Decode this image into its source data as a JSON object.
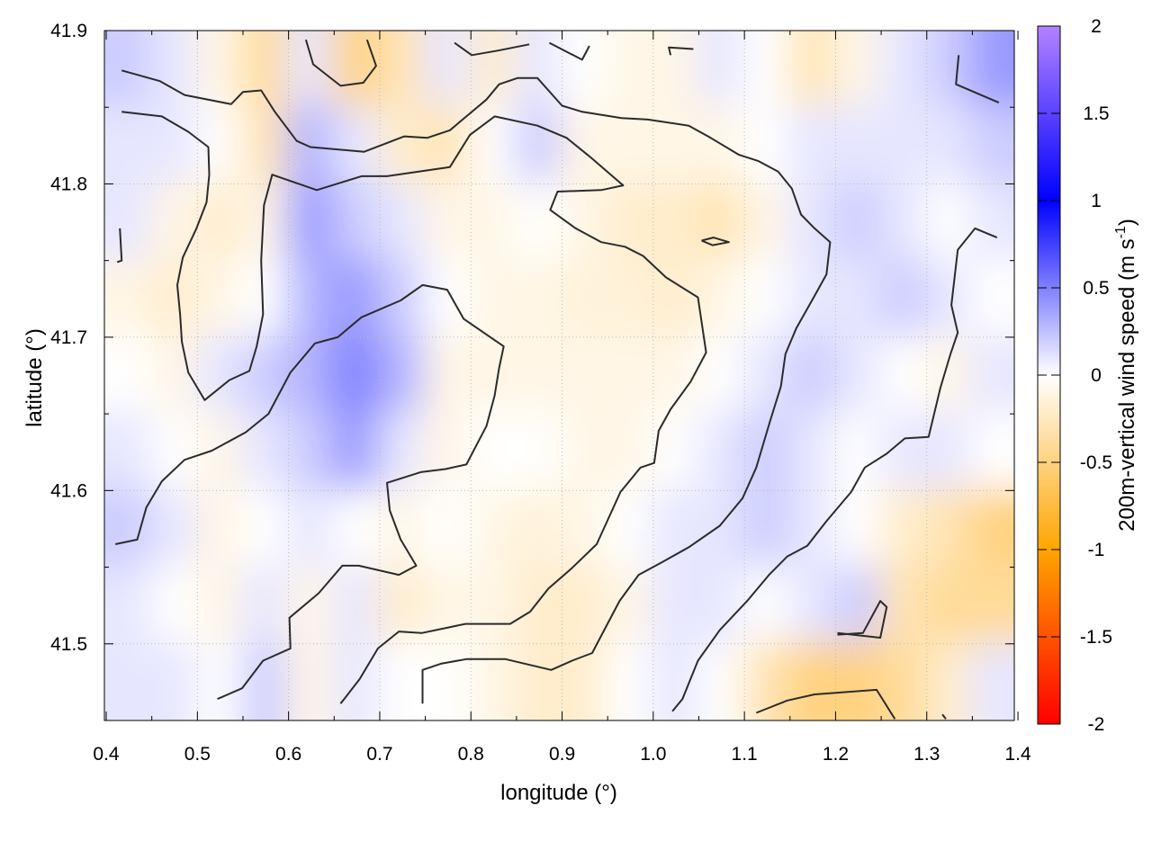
{
  "chart_data": {
    "type": "heatmap",
    "title": "",
    "xlabel": "longitude (°)",
    "ylabel": "latitude (°)",
    "xlim": [
      0.398,
      1.396
    ],
    "ylim": [
      41.45,
      41.9
    ],
    "xticks": [
      "0.4",
      "0.5",
      "0.6",
      "0.7",
      "0.8",
      "0.9",
      "1.0",
      "1.1",
      "1.2",
      "1.3",
      "1.4"
    ],
    "yticks": [
      "41.5",
      "41.6",
      "41.7",
      "41.8",
      "41.9"
    ],
    "grid": true,
    "colorbar": {
      "label": "200m-vertical wind speed (m s",
      "label_sup": "-1",
      "label_end": ")",
      "range": [
        -2,
        2
      ],
      "ticks": [
        "2",
        "1.5",
        "1",
        "0.5",
        "0",
        "-0.5",
        "-1",
        "-1.5",
        "-2"
      ],
      "stops": [
        [
          -2,
          "#ff0000"
        ],
        [
          -1,
          "#ffa500"
        ],
        [
          0,
          "#ffffff"
        ],
        [
          1,
          "#0000ff"
        ],
        [
          2,
          "#b383ff"
        ]
      ]
    },
    "field": {
      "lon_start": 0.4,
      "lon_step": 0.05,
      "lat_rows": [
        41.875,
        41.825,
        41.775,
        41.725,
        41.675,
        41.625,
        41.575,
        41.525,
        41.475
      ],
      "values": [
        [
          0.2,
          0.1,
          -0.1,
          -0.4,
          0.1,
          -0.5,
          -0.3,
          0.1,
          -0.2,
          0.1,
          0.0,
          -0.1,
          -0.1,
          0.1,
          0.0,
          -0.3,
          -0.1,
          0.1,
          0.2,
          0.4
        ],
        [
          0.1,
          0.1,
          0.0,
          -0.3,
          0.3,
          0.1,
          -0.2,
          -0.3,
          0.0,
          0.2,
          -0.1,
          -0.1,
          -0.1,
          -0.1,
          0.0,
          0.1,
          0.1,
          0.1,
          0.1,
          0.2
        ],
        [
          0.1,
          -0.1,
          -0.2,
          -0.1,
          0.4,
          0.2,
          0.1,
          -0.1,
          -0.1,
          0.0,
          -0.1,
          -0.2,
          -0.2,
          -0.3,
          -0.1,
          0.1,
          0.2,
          0.1,
          0.0,
          0.1
        ],
        [
          -0.1,
          -0.2,
          -0.1,
          0.0,
          0.3,
          0.4,
          0.2,
          0.0,
          -0.1,
          -0.1,
          -0.15,
          -0.15,
          -0.2,
          -0.1,
          0.0,
          0.1,
          0.1,
          0.2,
          0.1,
          0.0
        ],
        [
          0.0,
          -0.1,
          0.1,
          0.2,
          0.3,
          0.5,
          0.3,
          -0.1,
          -0.1,
          -0.1,
          -0.1,
          -0.1,
          -0.1,
          0.0,
          0.1,
          0.2,
          0.1,
          0.0,
          -0.1,
          0.1
        ],
        [
          0.1,
          0.0,
          -0.1,
          0.1,
          0.2,
          0.4,
          0.1,
          -0.1,
          0.0,
          0.0,
          -0.1,
          -0.1,
          0.0,
          0.1,
          0.2,
          0.1,
          0.0,
          0.1,
          0.1,
          0.0
        ],
        [
          0.2,
          0.1,
          -0.1,
          0.0,
          0.1,
          0.0,
          -0.1,
          0.0,
          -0.1,
          -0.15,
          -0.1,
          0.0,
          0.1,
          0.1,
          0.2,
          0.1,
          0.0,
          -0.2,
          -0.3,
          -0.5
        ],
        [
          0.1,
          0.0,
          -0.1,
          0.1,
          -0.1,
          0.1,
          -0.2,
          -0.1,
          -0.1,
          -0.2,
          -0.2,
          -0.1,
          0.1,
          0.1,
          0.0,
          0.1,
          0.2,
          -0.3,
          -0.4,
          -0.4
        ],
        [
          0.1,
          0.1,
          0.0,
          0.2,
          -0.1,
          0.1,
          0.0,
          0.0,
          -0.1,
          -0.2,
          -0.2,
          0.0,
          0.1,
          0.0,
          -0.3,
          -0.5,
          -0.5,
          -0.4,
          -0.2,
          0.1
        ]
      ]
    },
    "contours": [
      [
        [
          1.021,
          41.456
        ],
        [
          1.032,
          41.464
        ],
        [
          1.049,
          41.489
        ],
        [
          1.073,
          41.509
        ],
        [
          1.103,
          41.528
        ],
        [
          1.127,
          41.545
        ],
        [
          1.147,
          41.557
        ],
        [
          1.169,
          41.564
        ],
        [
          1.19,
          41.58
        ],
        [
          1.217,
          41.599
        ],
        [
          1.232,
          41.615
        ],
        [
          1.256,
          41.624
        ],
        [
          1.276,
          41.634
        ],
        [
          1.302,
          41.635
        ],
        [
          1.315,
          41.667
        ],
        [
          1.326,
          41.689
        ],
        [
          1.334,
          41.703
        ],
        [
          1.327,
          41.721
        ],
        [
          1.334,
          41.757
        ],
        [
          1.353,
          41.771
        ],
        [
          1.377,
          41.765
        ]
      ],
      [
        [
          0.747,
          41.461
        ],
        [
          0.747,
          41.483
        ],
        [
          0.767,
          41.487
        ],
        [
          0.795,
          41.49
        ],
        [
          0.838,
          41.49
        ],
        [
          0.888,
          41.483
        ],
        [
          0.911,
          41.489
        ],
        [
          0.933,
          41.494
        ],
        [
          0.94,
          41.502
        ],
        [
          0.963,
          41.528
        ],
        [
          0.984,
          41.545
        ],
        [
          1.009,
          41.553
        ],
        [
          1.039,
          41.563
        ],
        [
          1.073,
          41.577
        ],
        [
          1.098,
          41.595
        ],
        [
          1.113,
          41.615
        ],
        [
          1.128,
          41.645
        ],
        [
          1.14,
          41.668
        ],
        [
          1.145,
          41.689
        ],
        [
          1.157,
          41.706
        ],
        [
          1.177,
          41.727
        ],
        [
          1.19,
          41.741
        ],
        [
          1.194,
          41.762
        ],
        [
          1.177,
          41.771
        ],
        [
          1.162,
          41.78
        ],
        [
          1.152,
          41.797
        ],
        [
          1.137,
          41.808
        ],
        [
          1.115,
          41.815
        ],
        [
          1.094,
          41.819
        ],
        [
          1.063,
          41.83
        ],
        [
          1.039,
          41.838
        ],
        [
          0.994,
          41.842
        ],
        [
          0.965,
          41.843
        ],
        [
          0.922,
          41.847
        ],
        [
          0.9,
          41.851
        ],
        [
          0.873,
          41.869
        ],
        [
          0.851,
          41.869
        ],
        [
          0.831,
          41.865
        ],
        [
          0.817,
          41.855
        ],
        [
          0.795,
          41.844
        ],
        [
          0.777,
          41.835
        ],
        [
          0.752,
          41.83
        ],
        [
          0.727,
          41.831
        ],
        [
          0.683,
          41.821
        ],
        [
          0.624,
          41.824
        ],
        [
          0.609,
          41.828
        ],
        [
          0.585,
          41.847
        ],
        [
          0.57,
          41.861
        ],
        [
          0.55,
          41.86
        ],
        [
          0.537,
          41.852
        ],
        [
          0.486,
          41.858
        ],
        [
          0.459,
          41.867
        ],
        [
          0.417,
          41.874
        ]
      ],
      [
        [
          0.522,
          41.464
        ],
        [
          0.549,
          41.471
        ],
        [
          0.572,
          41.489
        ],
        [
          0.602,
          41.497
        ],
        [
          0.601,
          41.517
        ],
        [
          0.633,
          41.533
        ],
        [
          0.659,
          41.551
        ],
        [
          0.677,
          41.551
        ],
        [
          0.721,
          41.545
        ],
        [
          0.74,
          41.551
        ],
        [
          0.723,
          41.568
        ],
        [
          0.711,
          41.587
        ],
        [
          0.708,
          41.605
        ],
        [
          0.745,
          41.612
        ],
        [
          0.772,
          41.614
        ],
        [
          0.795,
          41.617
        ],
        [
          0.817,
          41.642
        ],
        [
          0.826,
          41.662
        ],
        [
          0.831,
          41.68
        ],
        [
          0.836,
          41.694
        ],
        [
          0.792,
          41.712
        ],
        [
          0.774,
          41.731
        ],
        [
          0.747,
          41.734
        ],
        [
          0.723,
          41.724
        ],
        [
          0.68,
          41.713
        ],
        [
          0.654,
          41.7
        ],
        [
          0.629,
          41.696
        ],
        [
          0.602,
          41.677
        ],
        [
          0.578,
          41.65
        ],
        [
          0.553,
          41.638
        ],
        [
          0.516,
          41.626
        ],
        [
          0.486,
          41.62
        ],
        [
          0.461,
          41.606
        ],
        [
          0.444,
          41.589
        ],
        [
          0.434,
          41.568
        ],
        [
          0.41,
          41.565
        ]
      ],
      [
        [
          0.657,
          41.461
        ],
        [
          0.678,
          41.477
        ],
        [
          0.698,
          41.497
        ],
        [
          0.721,
          41.508
        ],
        [
          0.746,
          41.507
        ],
        [
          0.794,
          41.513
        ],
        [
          0.843,
          41.513
        ],
        [
          0.865,
          41.521
        ],
        [
          0.885,
          41.536
        ],
        [
          0.91,
          41.549
        ],
        [
          0.938,
          41.565
        ],
        [
          0.964,
          41.599
        ],
        [
          0.986,
          41.615
        ],
        [
          1.001,
          41.618
        ],
        [
          1.006,
          41.639
        ],
        [
          1.019,
          41.653
        ],
        [
          1.041,
          41.671
        ],
        [
          1.058,
          41.69
        ],
        [
          1.049,
          41.726
        ],
        [
          1.014,
          41.739
        ],
        [
          0.989,
          41.753
        ],
        [
          0.969,
          41.759
        ],
        [
          0.943,
          41.762
        ],
        [
          0.915,
          41.771
        ],
        [
          0.887,
          41.783
        ],
        [
          0.895,
          41.795
        ],
        [
          0.943,
          41.796
        ],
        [
          0.967,
          41.799
        ],
        [
          0.93,
          41.818
        ],
        [
          0.905,
          41.83
        ],
        [
          0.873,
          41.838
        ],
        [
          0.826,
          41.844
        ],
        [
          0.799,
          41.832
        ],
        [
          0.777,
          41.811
        ],
        [
          0.708,
          41.805
        ],
        [
          0.68,
          41.805
        ],
        [
          0.631,
          41.796
        ],
        [
          0.582,
          41.806
        ],
        [
          0.573,
          41.786
        ],
        [
          0.57,
          41.75
        ],
        [
          0.572,
          41.715
        ],
        [
          0.565,
          41.694
        ],
        [
          0.557,
          41.678
        ],
        [
          0.535,
          41.672
        ],
        [
          0.508,
          41.659
        ],
        [
          0.49,
          41.677
        ],
        [
          0.483,
          41.697
        ],
        [
          0.481,
          41.715
        ],
        [
          0.478,
          41.734
        ],
        [
          0.484,
          41.752
        ],
        [
          0.499,
          41.771
        ],
        [
          0.51,
          41.788
        ],
        [
          0.513,
          41.806
        ],
        [
          0.512,
          41.824
        ],
        [
          0.49,
          41.834
        ],
        [
          0.461,
          41.844
        ],
        [
          0.417,
          41.847
        ]
      ],
      [
        [
          0.619,
          41.894
        ],
        [
          0.627,
          41.878
        ],
        [
          0.657,
          41.864
        ],
        [
          0.682,
          41.866
        ],
        [
          0.696,
          41.877
        ],
        [
          0.686,
          41.894
        ]
      ],
      [
        [
          0.782,
          41.892
        ],
        [
          0.801,
          41.884
        ],
        [
          0.83,
          41.887
        ],
        [
          0.864,
          41.891
        ]
      ],
      [
        [
          0.886,
          41.892
        ],
        [
          0.922,
          41.881
        ],
        [
          0.93,
          41.89
        ]
      ],
      [
        [
          1.019,
          41.884
        ],
        [
          1.017,
          41.889
        ],
        [
          1.044,
          41.888
        ]
      ],
      [
        [
          1.335,
          41.884
        ],
        [
          1.332,
          41.865
        ],
        [
          1.379,
          41.853
        ]
      ],
      [
        [
          0.415,
          41.771
        ],
        [
          0.417,
          41.75
        ],
        [
          0.412,
          41.749
        ]
      ],
      [
        [
          1.053,
          41.763
        ],
        [
          1.065,
          41.76
        ],
        [
          1.083,
          41.762
        ],
        [
          1.066,
          41.765
        ],
        [
          1.053,
          41.763
        ]
      ],
      [
        [
          1.202,
          41.507
        ],
        [
          1.249,
          41.504
        ],
        [
          1.256,
          41.524
        ],
        [
          1.249,
          41.528
        ],
        [
          1.23,
          41.507
        ],
        [
          1.202,
          41.506
        ]
      ],
      [
        [
          1.113,
          41.455
        ],
        [
          1.147,
          41.463
        ],
        [
          1.177,
          41.467
        ],
        [
          1.245,
          41.47
        ],
        [
          1.265,
          41.451
        ]
      ],
      [
        [
          1.317,
          41.454
        ],
        [
          1.321,
          41.451
        ]
      ]
    ]
  }
}
